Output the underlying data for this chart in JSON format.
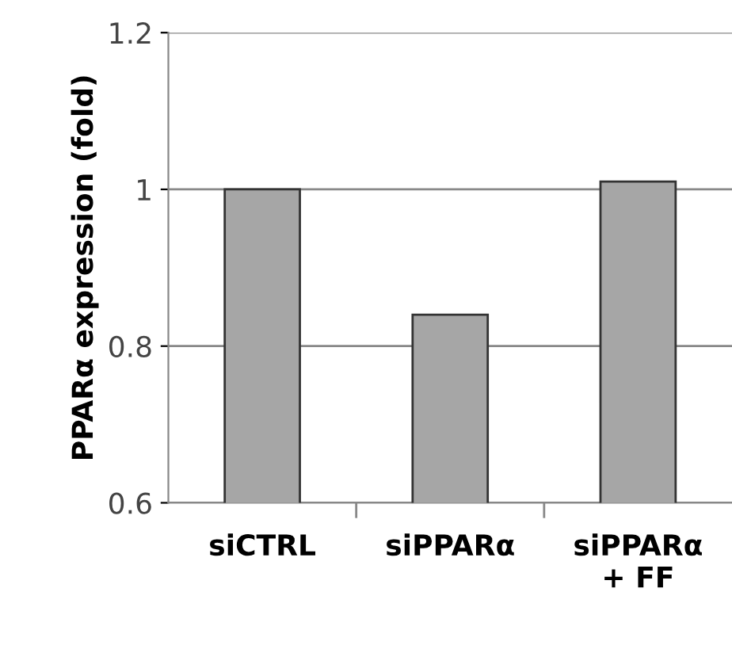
{
  "chart_data": {
    "type": "bar",
    "ylabel": "PPARα expression (fold)",
    "categories": [
      "siCTRL",
      "siPPARα",
      "siPPARα\n+ FF"
    ],
    "values": [
      1.0,
      0.84,
      1.01
    ],
    "color": "#a6a6a6",
    "ylim": [
      0.6,
      1.2
    ],
    "yticks": [
      0.6,
      0.8,
      1,
      1.2
    ],
    "grid": "y"
  }
}
